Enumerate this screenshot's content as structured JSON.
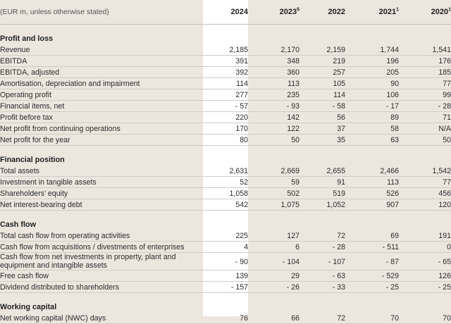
{
  "header": {
    "unit_note": "(EUR m, unless otherwise stated)",
    "years": [
      "2024",
      "2023",
      "2022",
      "2021",
      "2020"
    ],
    "footnotes": [
      "",
      "5",
      "",
      "1",
      "1"
    ]
  },
  "sections": [
    {
      "title": "Profit and loss",
      "rows": [
        {
          "label": "Revenue",
          "values": [
            "2,185",
            "2,170",
            "2,159",
            "1,744",
            "1,541"
          ]
        },
        {
          "label": "EBITDA",
          "values": [
            "391",
            "348",
            "219",
            "196",
            "176"
          ]
        },
        {
          "label": "EBITDA, adjusted",
          "values": [
            "392",
            "360",
            "257",
            "205",
            "185"
          ]
        },
        {
          "label": "Amortisation, depreciation and impairment",
          "values": [
            "114",
            "113",
            "105",
            "90",
            "77"
          ]
        },
        {
          "label": "Operating profit",
          "values": [
            "277",
            "235",
            "114",
            "106",
            "99"
          ]
        },
        {
          "label": "Financial items, net",
          "values": [
            "- 57",
            "- 93",
            "- 58",
            "- 17",
            "- 28"
          ]
        },
        {
          "label": "Profit before tax",
          "values": [
            "220",
            "142",
            "56",
            "89",
            "71"
          ]
        },
        {
          "label": "Net profit from continuing operations",
          "values": [
            "170",
            "122",
            "37",
            "58",
            "N/A"
          ]
        },
        {
          "label": "Net profit for the year",
          "values": [
            "80",
            "50",
            "35",
            "63",
            "50"
          ]
        }
      ]
    },
    {
      "title": "Financial position",
      "rows": [
        {
          "label": "Total assets",
          "values": [
            "2,631",
            "2,669",
            "2,655",
            "2,466",
            "1,542"
          ]
        },
        {
          "label": "Investment in tangible assets",
          "values": [
            "52",
            "59",
            "91",
            "113",
            "77"
          ]
        },
        {
          "label": "Shareholders’ equity",
          "values": [
            "1,058",
            "502",
            "519",
            "526",
            "456"
          ]
        },
        {
          "label": "Net interest-bearing debt",
          "values": [
            "542",
            "1,075",
            "1,052",
            "907",
            "120"
          ]
        }
      ]
    },
    {
      "title": "Cash flow",
      "rows": [
        {
          "label": "Total cash flow from operating activities",
          "values": [
            "225",
            "127",
            "72",
            "69",
            "191"
          ]
        },
        {
          "label": "Cash flow from acquisitions / divestments of enterprises",
          "values": [
            "4",
            "6",
            "- 28",
            "- 511",
            "0"
          ]
        },
        {
          "label": "Cash flow from net investments in property, plant and equipment and intangible assets",
          "values": [
            "- 90",
            "- 104",
            "- 107",
            "- 87",
            "- 65"
          ]
        },
        {
          "label": "Free cash flow",
          "values": [
            "139",
            "29",
            "- 63",
            "- 529",
            "126"
          ]
        },
        {
          "label": "Dividend distributed to shareholders",
          "values": [
            "- 157",
            "- 26",
            "- 33",
            "- 25",
            "- 25"
          ]
        }
      ]
    },
    {
      "title": "Working capital",
      "rows": [
        {
          "label": "Net working capital (NWC) days",
          "values": [
            "76",
            "66",
            "72",
            "70",
            "70"
          ]
        }
      ]
    }
  ]
}
